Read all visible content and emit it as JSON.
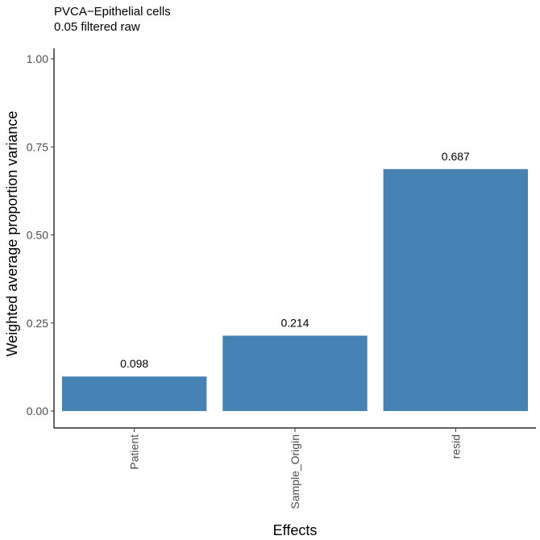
{
  "chart_data": {
    "type": "bar",
    "title": "PVCA−Epithelial cells",
    "subtitle": "0.05 filtered raw",
    "xlabel": "Effects",
    "ylabel": "Weighted average proportion variance",
    "categories": [
      "Patient",
      "Sample_Origin",
      "resid"
    ],
    "values": [
      0.098,
      0.214,
      0.687
    ],
    "data_labels": [
      "0.098",
      "0.214",
      "0.687"
    ],
    "ylim": [
      0,
      1
    ],
    "yticks": [
      0,
      0.25,
      0.5,
      0.75,
      1.0
    ],
    "ytick_labels": [
      "0.00",
      "0.25",
      "0.50",
      "0.75",
      "1.00"
    ],
    "grid": false,
    "legend": "none",
    "bar_color": "#4682B4"
  }
}
